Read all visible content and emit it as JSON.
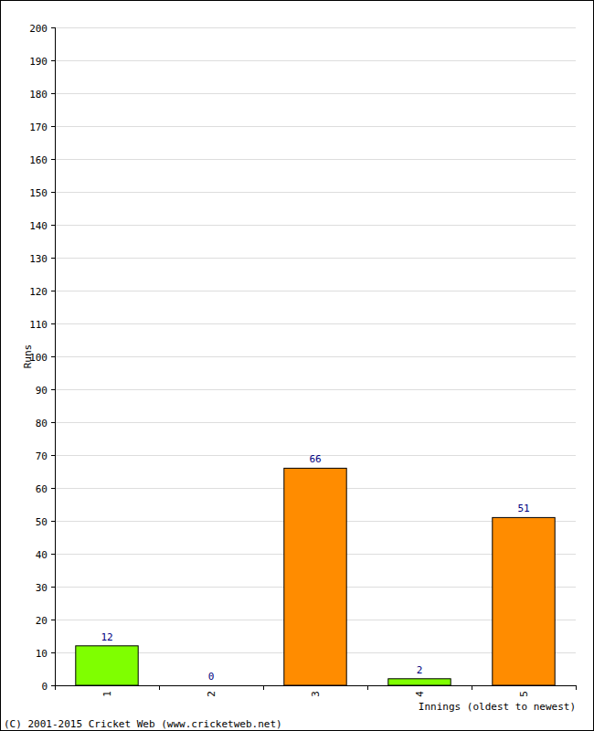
{
  "chart_data": {
    "type": "bar",
    "x_label": "Innings (oldest to newest)",
    "y_label": "Runs",
    "annotations": [
      "(C) 2001-2015 Cricket Web (www.cricketweb.net)"
    ],
    "categories": [
      "1",
      "2",
      "3",
      "4",
      "5"
    ],
    "values": [
      12,
      0,
      66,
      2,
      51
    ],
    "colors": [
      "#7fff00",
      "#7fff00",
      "#ff8c00",
      "#7fff00",
      "#ff8c00"
    ],
    "ylim": [
      0,
      200
    ],
    "yticks": [
      0,
      10,
      20,
      30,
      40,
      50,
      60,
      70,
      80,
      90,
      100,
      110,
      120,
      130,
      140,
      150,
      160,
      170,
      180,
      190,
      200
    ],
    "grid": true,
    "data_labels": true
  }
}
